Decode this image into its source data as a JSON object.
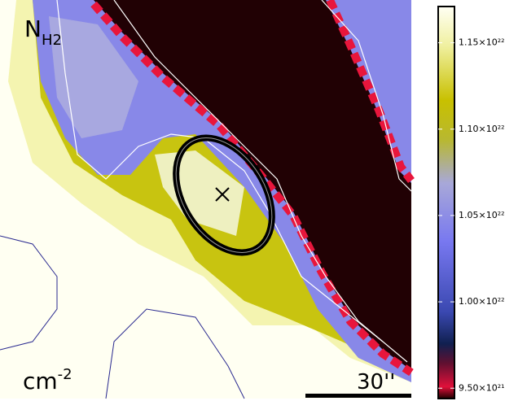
{
  "chart_data": {
    "type": "heatmap",
    "label": "N",
    "label_sub": "H2",
    "unit": "cm",
    "unit_sup": "-2",
    "scale_label": "30''",
    "zlim": [
      9.44e+21,
      1.171e+22
    ],
    "zticks": [
      {
        "value": 9.5e+21,
        "label": "9.50×10²¹"
      },
      {
        "value": 1e+22,
        "label": "1.00×10²²"
      },
      {
        "value": 1.05e+22,
        "label": "1.05×10²²"
      },
      {
        "value": 1.1e+22,
        "label": "1.10×10²²"
      },
      {
        "value": 1.15e+22,
        "label": "1.15×10²²"
      }
    ]
  }
}
